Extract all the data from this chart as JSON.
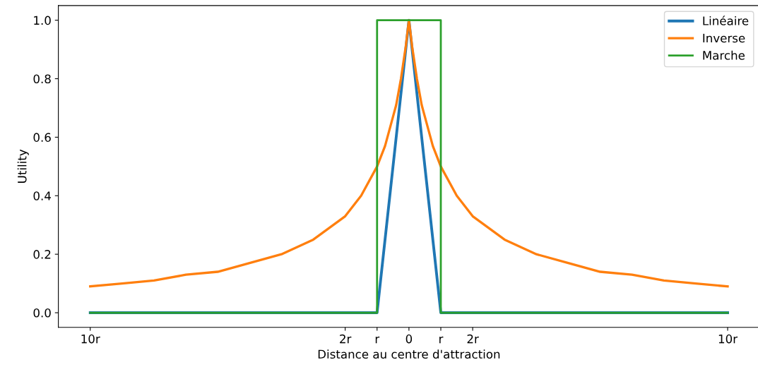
{
  "chart_data": {
    "type": "line",
    "xlabel": "Distance au centre d'attraction",
    "ylabel": "Utility",
    "xlim": [
      -11,
      11
    ],
    "ylim": [
      -0.05,
      1.05
    ],
    "xticks": [
      {
        "value": -10,
        "label": "10r"
      },
      {
        "value": -2,
        "label": "2r"
      },
      {
        "value": -1,
        "label": "r"
      },
      0,
      {
        "value": 1,
        "label": "r"
      },
      {
        "value": 2,
        "label": "2r"
      },
      {
        "value": 10,
        "label": "10r"
      }
    ],
    "yticks": [
      {
        "value": 0,
        "label": "0.0"
      },
      0.2,
      0.4,
      0.6,
      0.8,
      {
        "value": 1,
        "label": "1.0"
      }
    ],
    "legend": "top right",
    "grid": false,
    "marker": "none",
    "line_style": "solid",
    "series": [
      {
        "name": "Linéaire",
        "color": "#1f77b4",
        "x": [
          -10,
          -1,
          0,
          1,
          10
        ],
        "values": [
          0,
          0,
          1,
          0,
          0
        ]
      },
      {
        "name": "Inverse",
        "color": "#ff7f0e",
        "x": [
          -10,
          -9,
          -8,
          -7,
          -6,
          -5,
          -4,
          -3,
          -2,
          -1.5,
          -1,
          -0.75,
          -0.5,
          -0.4,
          -0.25,
          -0.1,
          0,
          0.1,
          0.25,
          0.4,
          0.5,
          0.75,
          1,
          1.5,
          2,
          3,
          4,
          5,
          6,
          7,
          8,
          9,
          10
        ],
        "values": [
          0.09,
          0.1,
          0.11,
          0.13,
          0.14,
          0.17,
          0.2,
          0.25,
          0.33,
          0.4,
          0.5,
          0.57,
          0.67,
          0.71,
          0.8,
          0.91,
          1.0,
          0.91,
          0.8,
          0.71,
          0.67,
          0.57,
          0.5,
          0.4,
          0.33,
          0.25,
          0.2,
          0.17,
          0.14,
          0.13,
          0.11,
          0.1,
          0.09
        ]
      },
      {
        "name": "Marche",
        "color": "#2ca02c",
        "x": [
          -10,
          -1,
          -1,
          1,
          1,
          10
        ],
        "values": [
          0,
          0,
          1,
          1,
          0,
          0
        ]
      }
    ]
  }
}
